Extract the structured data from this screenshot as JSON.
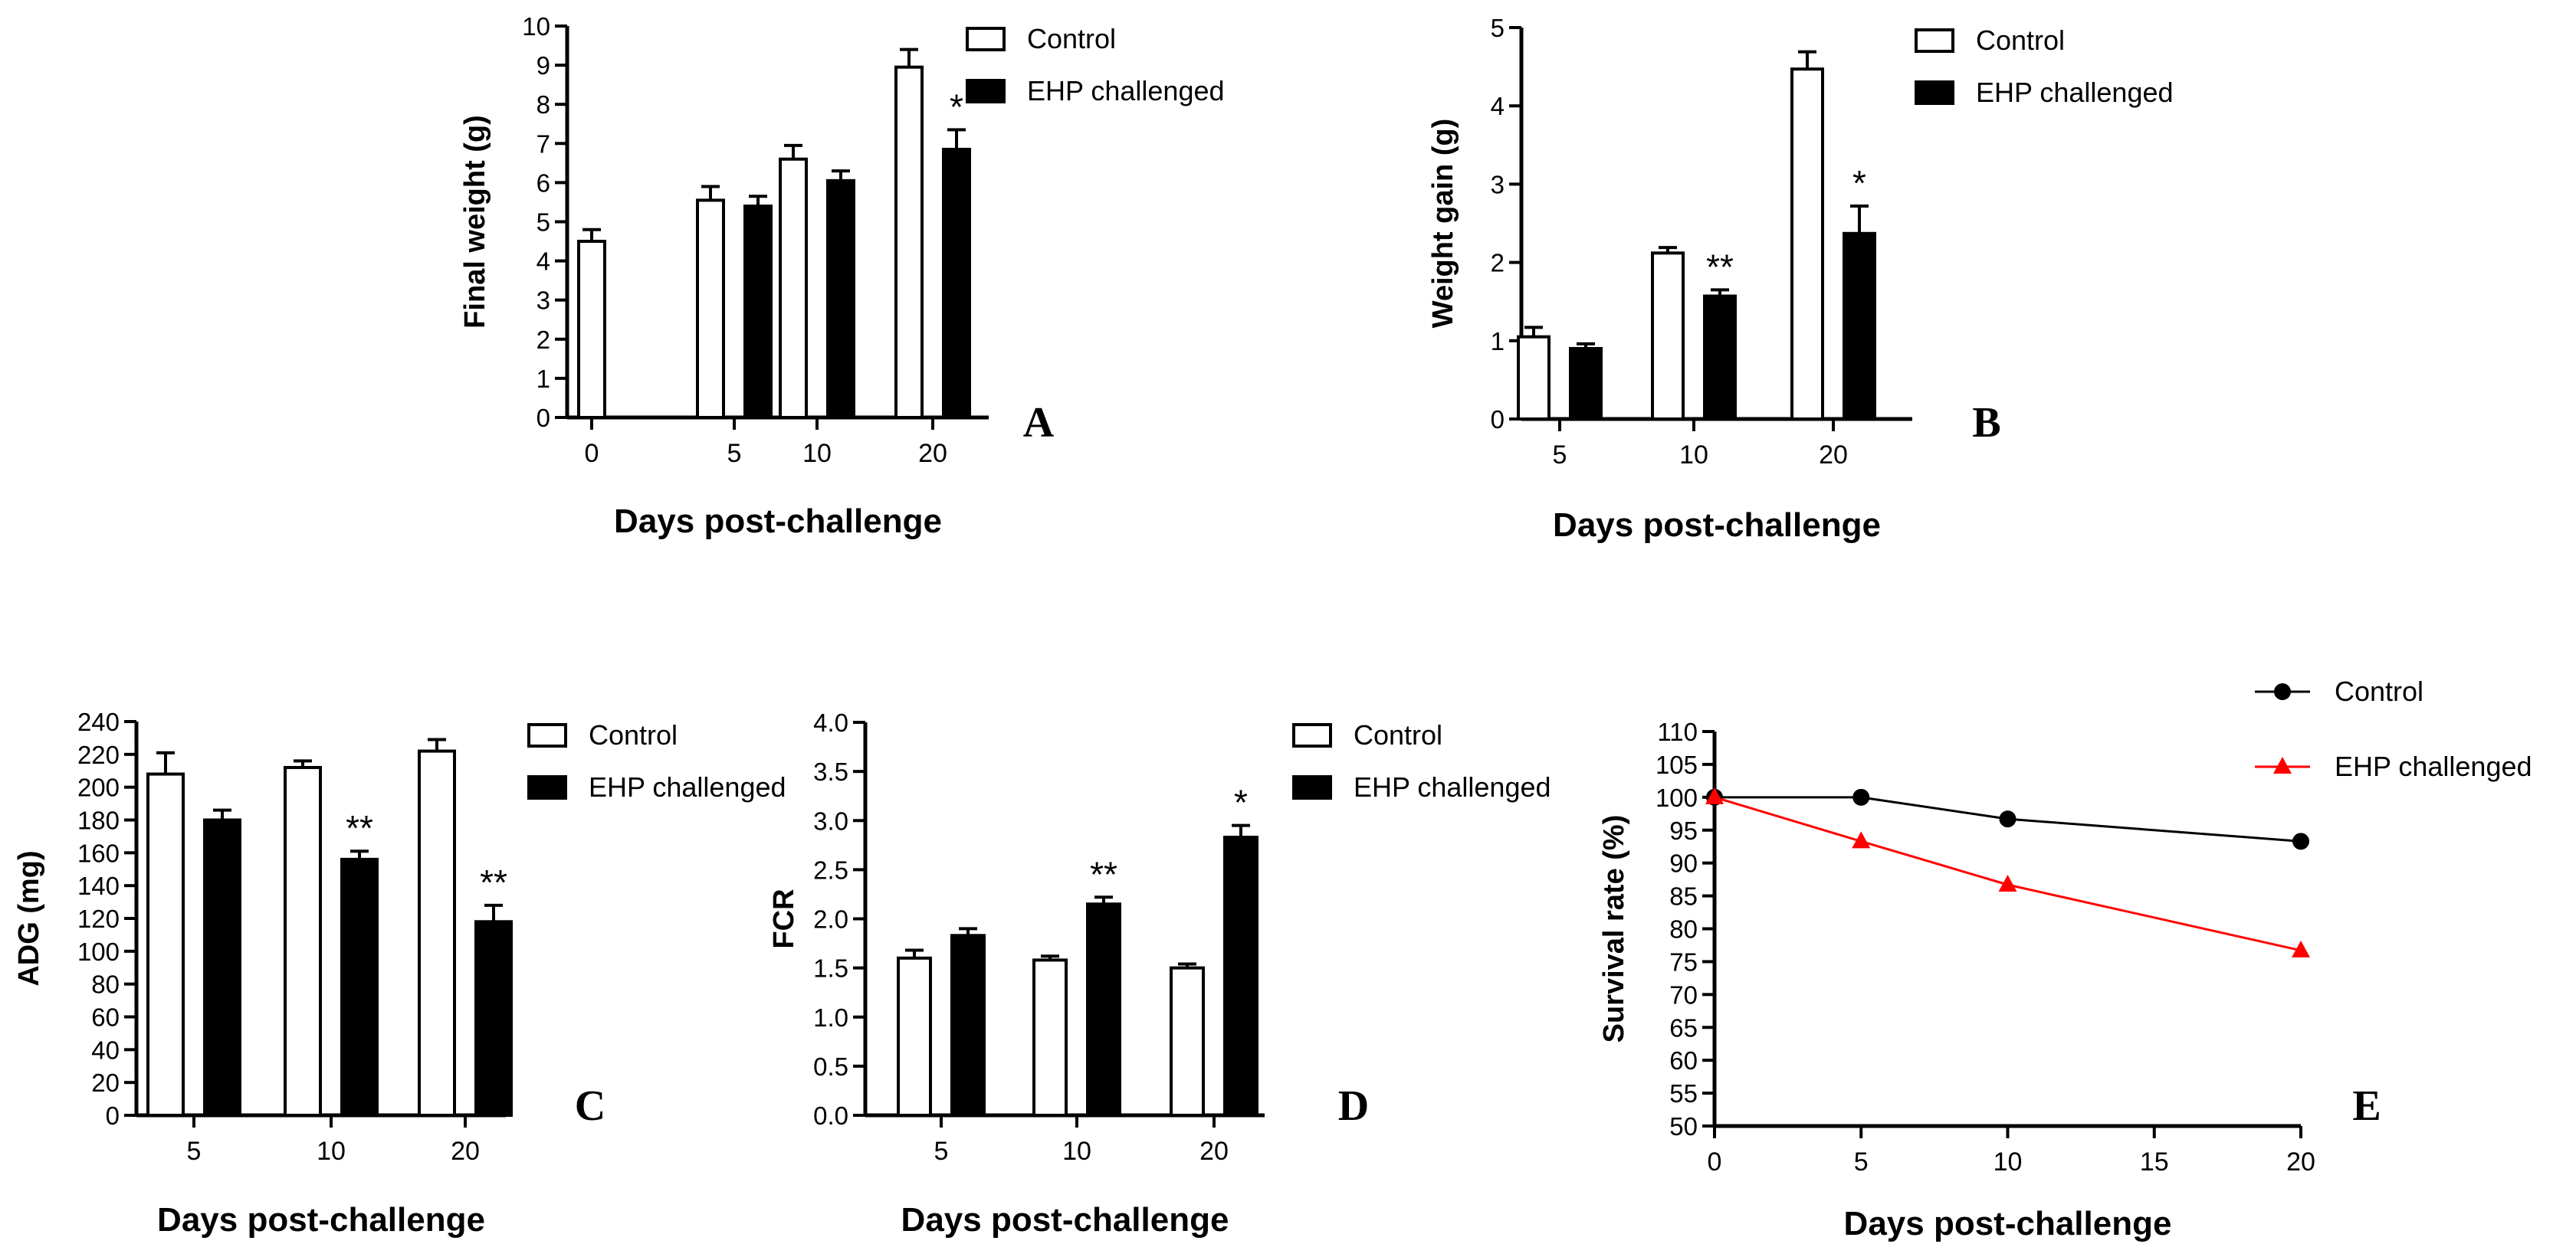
{
  "chart_data": [
    {
      "id": "A",
      "type": "bar",
      "panel_label": "A",
      "title": "",
      "xlabel": "Days post-challenge",
      "ylabel": "Final weight (g)",
      "categories": [
        "0",
        "5",
        "10",
        "20"
      ],
      "series": [
        {
          "name": "Control",
          "values": [
            4.5,
            5.55,
            6.6,
            8.95
          ],
          "errors": [
            0.3,
            0.35,
            0.35,
            0.45
          ]
        },
        {
          "name": "EHP challenged",
          "values": [
            null,
            5.4,
            6.05,
            6.85
          ],
          "errors": [
            null,
            0.25,
            0.25,
            0.5
          ]
        }
      ],
      "significance": [
        {
          "category": "20",
          "series": "EHP challenged",
          "label": "*"
        }
      ],
      "ylim": [
        0,
        10
      ],
      "yticks": [
        "0",
        "1",
        "2",
        "3",
        "4",
        "5",
        "6",
        "7",
        "8",
        "9",
        "10"
      ],
      "legend": [
        "Control",
        "EHP challenged"
      ],
      "legend_position": "top-right"
    },
    {
      "id": "B",
      "type": "bar",
      "panel_label": "B",
      "title": "",
      "xlabel": "Days post-challenge",
      "ylabel": "Weight gain (g)",
      "categories": [
        "5",
        "10",
        "20"
      ],
      "series": [
        {
          "name": "Control",
          "values": [
            1.05,
            2.12,
            4.47
          ],
          "errors": [
            0.12,
            0.07,
            0.22
          ]
        },
        {
          "name": "EHP challenged",
          "values": [
            0.9,
            1.57,
            2.37
          ],
          "errors": [
            0.06,
            0.08,
            0.35
          ]
        }
      ],
      "significance": [
        {
          "category": "10",
          "series": "EHP challenged",
          "label": "**"
        },
        {
          "category": "20",
          "series": "EHP challenged",
          "label": "*"
        }
      ],
      "ylim": [
        0,
        5
      ],
      "yticks": [
        "0",
        "1",
        "2",
        "3",
        "4",
        "5"
      ],
      "legend": [
        "Control",
        "EHP challenged"
      ],
      "legend_position": "top-right"
    },
    {
      "id": "C",
      "type": "bar",
      "panel_label": "C",
      "title": "",
      "xlabel": "Days post-challenge",
      "ylabel": "ADG (mg)",
      "categories": [
        "5",
        "10",
        "20"
      ],
      "series": [
        {
          "name": "Control",
          "values": [
            208,
            212,
            222
          ],
          "errors": [
            13,
            4,
            7
          ]
        },
        {
          "name": "EHP challenged",
          "values": [
            180,
            156,
            118
          ],
          "errors": [
            6,
            5,
            10
          ]
        }
      ],
      "significance": [
        {
          "category": "10",
          "series": "EHP challenged",
          "label": "**"
        },
        {
          "category": "20",
          "series": "EHP challenged",
          "label": "**"
        }
      ],
      "ylim": [
        0,
        240
      ],
      "yticks": [
        "0",
        "20",
        "40",
        "60",
        "80",
        "100",
        "120",
        "140",
        "160",
        "180",
        "200",
        "220",
        "240"
      ],
      "legend": [
        "Control",
        "EHP challenged"
      ],
      "legend_position": "top-right"
    },
    {
      "id": "D",
      "type": "bar",
      "panel_label": "D",
      "title": "",
      "xlabel": "Days post-challenge",
      "ylabel": "FCR",
      "categories": [
        "5",
        "10",
        "20"
      ],
      "series": [
        {
          "name": "Control",
          "values": [
            1.6,
            1.58,
            1.5
          ],
          "errors": [
            0.08,
            0.04,
            0.04
          ]
        },
        {
          "name": "EHP challenged",
          "values": [
            1.83,
            2.15,
            2.83
          ],
          "errors": [
            0.07,
            0.07,
            0.12
          ]
        }
      ],
      "significance": [
        {
          "category": "10",
          "series": "EHP challenged",
          "label": "**"
        },
        {
          "category": "20",
          "series": "EHP challenged",
          "label": "*"
        }
      ],
      "ylim": [
        0,
        4
      ],
      "yticks": [
        "0.0",
        "0.5",
        "1.0",
        "1.5",
        "2.0",
        "2.5",
        "3.0",
        "3.5",
        "4.0"
      ],
      "legend": [
        "Control",
        "EHP challenged"
      ],
      "legend_position": "top-right"
    },
    {
      "id": "E",
      "type": "line",
      "panel_label": "E",
      "title": "",
      "xlabel": "Days post-challenge",
      "ylabel": "Survival rate (%)",
      "series": [
        {
          "name": "Control",
          "marker": "circle",
          "color": "#000000",
          "x": [
            0,
            5,
            10,
            20
          ],
          "y": [
            100,
            100,
            96.7,
            93.3
          ]
        },
        {
          "name": "EHP challenged",
          "marker": "triangle",
          "color": "#ff0000",
          "x": [
            0,
            5,
            10,
            20
          ],
          "y": [
            100,
            93.3,
            86.7,
            76.7
          ]
        }
      ],
      "xlim": [
        0,
        20
      ],
      "ylim": [
        50,
        110
      ],
      "xticks": [
        "0",
        "5",
        "10",
        "15",
        "20"
      ],
      "yticks": [
        "50",
        "55",
        "60",
        "65",
        "70",
        "75",
        "80",
        "85",
        "90",
        "95",
        "100",
        "105",
        "110"
      ],
      "legend": [
        "Control",
        "EHP challenged"
      ],
      "legend_position": "top-right"
    }
  ],
  "colors": {
    "control_fill": "#ffffff",
    "ehp_fill": "#000000",
    "axis": "#000000",
    "line_control": "#000000",
    "line_ehp": "#ff0000"
  }
}
